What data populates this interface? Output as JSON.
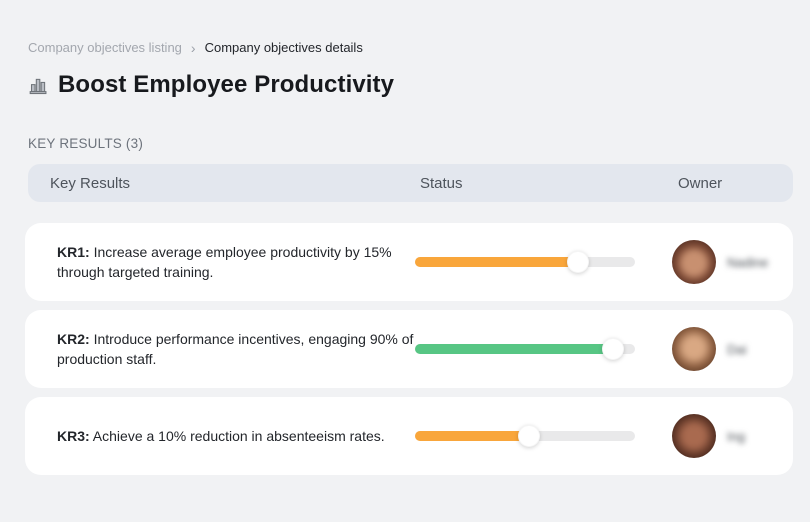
{
  "breadcrumb": {
    "listing": "Company objectives listing",
    "separator": "›",
    "details": "Company objectives details"
  },
  "page": {
    "title": "Boost Employee Productivity",
    "title_icon": "bar-chart-buildings-icon"
  },
  "section": {
    "label": "KEY RESULTS (3)"
  },
  "table": {
    "headers": {
      "key_results": "Key Results",
      "status": "Status",
      "owner": "Owner"
    },
    "rows": [
      {
        "kr_label": "KR1:",
        "text": "Increase average employee productivity by 15% through targeted training.",
        "progress_percent": 74,
        "progress_color": "#F9A63B",
        "owner_name": "Nadine"
      },
      {
        "kr_label": "KR2:",
        "text": "Introduce performance incentives, engaging 90% of production staff.",
        "progress_percent": 90,
        "progress_color": "#57C684",
        "owner_name": "Dai"
      },
      {
        "kr_label": "KR3:",
        "text": "Achieve a 10% reduction in absenteeism rates.",
        "progress_percent": 52,
        "progress_color": "#F9A63B",
        "owner_name": "Ing"
      }
    ]
  },
  "colors": {
    "page_background": "#f1f2f4",
    "header_background": "#e3e7ee",
    "card_background": "#ffffff",
    "progress_track": "#e9e9ea",
    "progress_orange": "#F9A63B",
    "progress_green": "#57C684"
  }
}
